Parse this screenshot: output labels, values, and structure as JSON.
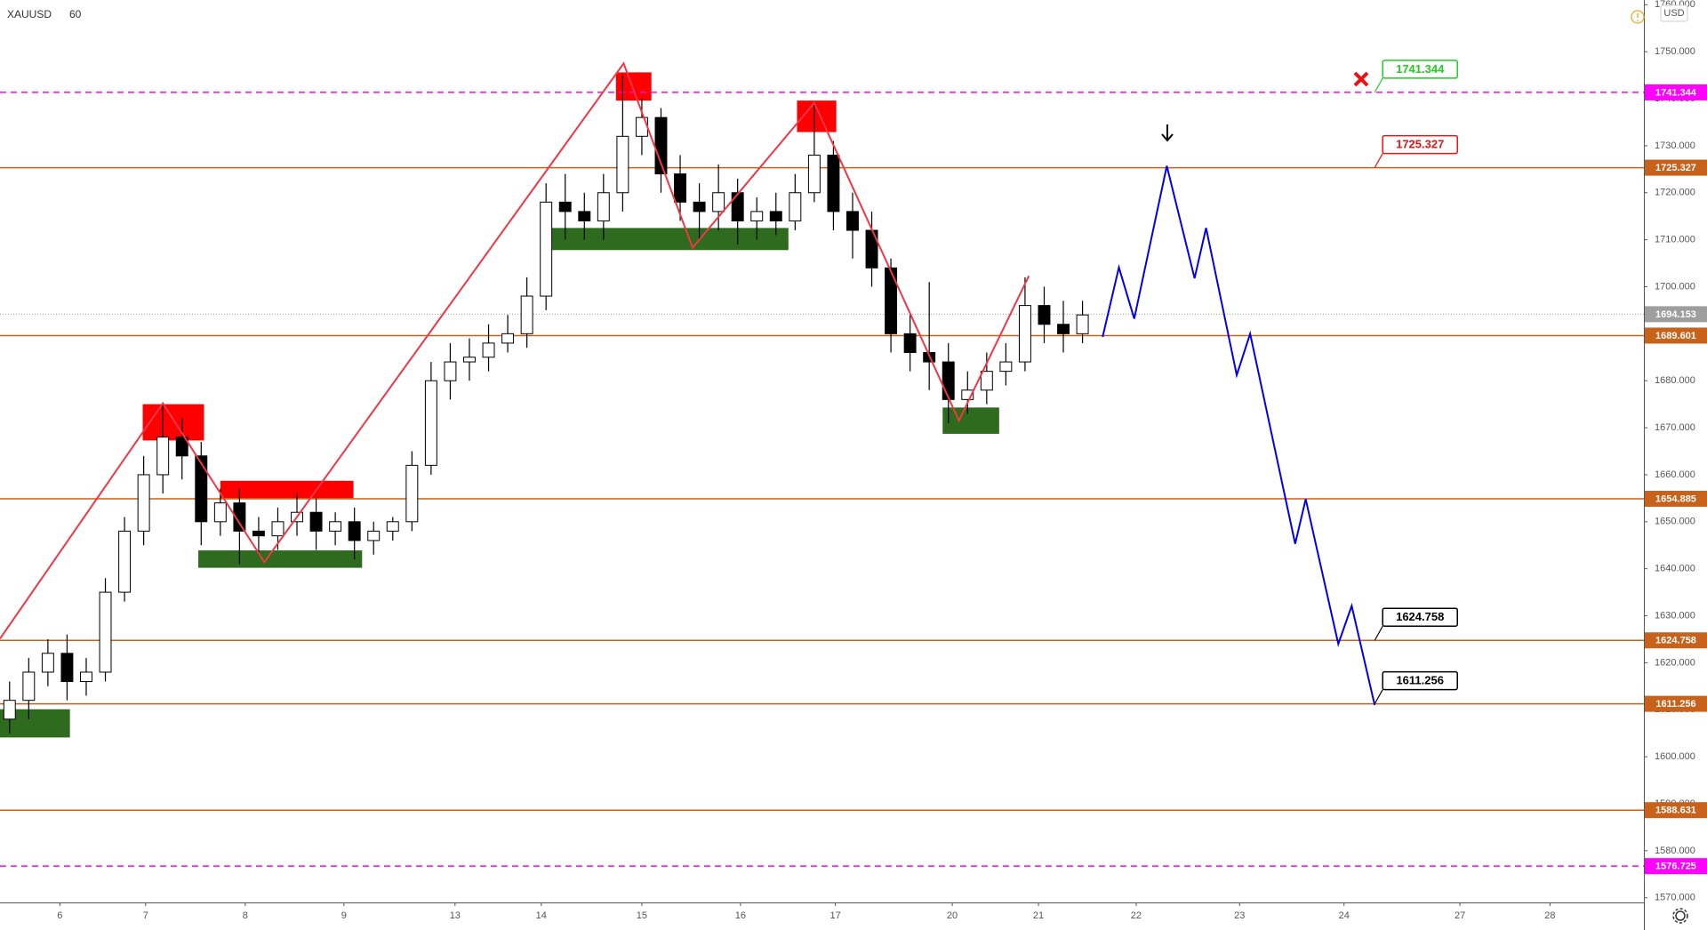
{
  "chart_data": {
    "type": "candlestick",
    "symbol": "XAUUSD",
    "interval": 60,
    "currency": "USD",
    "up_color": "#ffffff",
    "down_color": "#000000",
    "x": [
      0.1,
      0.3,
      0.5,
      0.7,
      0.9,
      1.1,
      1.3,
      1.5,
      1.7,
      1.9,
      2.1,
      2.3,
      2.5,
      2.7,
      2.9,
      3.1,
      3.3,
      3.5,
      3.7,
      3.9,
      4.1,
      4.3,
      4.5,
      4.7,
      4.9,
      5.1,
      5.3,
      5.5,
      5.7,
      5.9,
      6.1,
      6.3,
      6.5,
      6.7,
      6.9,
      7.1,
      7.3,
      7.5,
      7.7,
      7.9,
      8.1,
      8.3,
      8.5,
      8.7,
      8.9,
      9.1,
      9.3,
      9.5,
      9.7,
      9.9,
      10.1,
      10.3,
      10.5,
      10.7,
      10.9,
      11.1,
      11.3
    ],
    "open": [
      1608,
      1612,
      1618,
      1622,
      1616,
      1618,
      1635,
      1648,
      1660,
      1668,
      1664,
      1650,
      1654,
      1648,
      1647,
      1650,
      1652,
      1648,
      1650,
      1646,
      1648,
      1650,
      1662,
      1680,
      1684,
      1685,
      1688,
      1690,
      1698,
      1718,
      1716,
      1714,
      1720,
      1732,
      1736,
      1724,
      1718,
      1716,
      1720,
      1714,
      1716,
      1714,
      1720,
      1728,
      1716,
      1712,
      1704,
      1690,
      1686,
      1684,
      1676,
      1678,
      1682,
      1684,
      1696,
      1692,
      1690
    ],
    "high": [
      1616,
      1621,
      1625,
      1626,
      1621,
      1638,
      1651,
      1664,
      1675,
      1672,
      1667,
      1657,
      1657,
      1651,
      1653,
      1656,
      1655,
      1652,
      1653,
      1650,
      1651,
      1665,
      1684,
      1688,
      1689,
      1692,
      1694,
      1702,
      1722,
      1724,
      1720,
      1724,
      1745,
      1740,
      1738,
      1728,
      1722,
      1726,
      1723,
      1719,
      1720,
      1724,
      1739,
      1731,
      1720,
      1716,
      1706,
      1694,
      1701,
      1688,
      1682,
      1686,
      1688,
      1702,
      1700,
      1697,
      1697
    ],
    "low": [
      1605,
      1608,
      1615,
      1612,
      1613,
      1616,
      1633,
      1645,
      1656,
      1659,
      1645,
      1647,
      1641,
      1643,
      1644,
      1647,
      1644,
      1645,
      1642,
      1643,
      1646,
      1648,
      1660,
      1676,
      1680,
      1682,
      1686,
      1687,
      1695,
      1710,
      1710,
      1710,
      1716,
      1728,
      1720,
      1714,
      1710,
      1712,
      1709,
      1710,
      1711,
      1712,
      1718,
      1712,
      1706,
      1700,
      1686,
      1682,
      1678,
      1671,
      1673,
      1675,
      1679,
      1682,
      1688,
      1686,
      1688
    ],
    "close": [
      1612,
      1618,
      1622,
      1616,
      1618,
      1635,
      1648,
      1660,
      1668,
      1664,
      1650,
      1654,
      1648,
      1647,
      1650,
      1652,
      1648,
      1650,
      1646,
      1648,
      1650,
      1662,
      1680,
      1684,
      1685,
      1688,
      1690,
      1698,
      1718,
      1716,
      1714,
      1720,
      1732,
      1736,
      1724,
      1718,
      1716,
      1720,
      1714,
      1716,
      1714,
      1720,
      1728,
      1716,
      1712,
      1704,
      1690,
      1686,
      1684,
      1676,
      1678,
      1682,
      1684,
      1696,
      1692,
      1690,
      1694
    ],
    "xlim": [
      0,
      17.16
    ],
    "ylim": [
      1569,
      1761
    ],
    "xticks": [
      {
        "value": 0.625,
        "label": "6"
      },
      {
        "value": 1.52,
        "label": "7"
      },
      {
        "value": 2.56,
        "label": "8"
      },
      {
        "value": 3.59,
        "label": "9"
      },
      {
        "value": 4.75,
        "label": "13"
      },
      {
        "value": 5.65,
        "label": "14"
      },
      {
        "value": 6.7,
        "label": "15"
      },
      {
        "value": 7.73,
        "label": "16"
      },
      {
        "value": 8.72,
        "label": "17"
      },
      {
        "value": 9.94,
        "label": "20"
      },
      {
        "value": 10.84,
        "label": "21"
      },
      {
        "value": 11.86,
        "label": "22"
      },
      {
        "value": 12.94,
        "label": "23"
      },
      {
        "value": 14.03,
        "label": "24"
      },
      {
        "value": 15.24,
        "label": "27"
      },
      {
        "value": 16.18,
        "label": "28"
      }
    ],
    "yticks": [
      {
        "value": 1570,
        "label": "1570.000"
      },
      {
        "value": 1580,
        "label": "1580.000"
      },
      {
        "value": 1590,
        "label": "1590.000"
      },
      {
        "value": 1600,
        "label": "1600.000"
      },
      {
        "value": 1610,
        "label": "1610.000"
      },
      {
        "value": 1620,
        "label": "1620.000"
      },
      {
        "value": 1630,
        "label": "1630.000"
      },
      {
        "value": 1640,
        "label": "1640.000"
      },
      {
        "value": 1650,
        "label": "1650.000"
      },
      {
        "value": 1660,
        "label": "1660.000"
      },
      {
        "value": 1670,
        "label": "1670.000"
      },
      {
        "value": 1680,
        "label": "1680.000"
      },
      {
        "value": 1690,
        "label": "1690.000"
      },
      {
        "value": 1700,
        "label": "1700.000"
      },
      {
        "value": 1710,
        "label": "1710.000"
      },
      {
        "value": 1720,
        "label": "1720.000"
      },
      {
        "value": 1730,
        "label": "1730.000"
      },
      {
        "value": 1740,
        "label": "1740.000"
      },
      {
        "value": 1750,
        "label": "1750.000"
      },
      {
        "value": 1760,
        "label": "1760.000"
      }
    ],
    "levels": [
      {
        "value": 1741.344,
        "color": "#ff00ff",
        "style": "dashed"
      },
      {
        "value": 1725.327,
        "color": "#c8621a",
        "style": "solid"
      },
      {
        "value": 1689.601,
        "color": "#c8621a",
        "style": "solid"
      },
      {
        "value": 1654.885,
        "color": "#c8621a",
        "style": "solid"
      },
      {
        "value": 1624.758,
        "color": "#c8621a",
        "style": "solid"
      },
      {
        "value": 1611.256,
        "color": "#c8621a",
        "style": "solid"
      },
      {
        "value": 1588.631,
        "color": "#c8621a",
        "style": "solid"
      },
      {
        "value": 1576.725,
        "color": "#ff00ff",
        "style": "dashed"
      }
    ],
    "current_price": {
      "value": 1694.153,
      "color": "#9e9e9e"
    },
    "zones": [
      {
        "color": "#ff0000",
        "x": [
          1.49,
          2.13
        ],
        "y": [
          1667.3,
          1675.0
        ]
      },
      {
        "color": "#ff0000",
        "x": [
          2.3,
          3.69
        ],
        "y": [
          1655.0,
          1658.7
        ]
      },
      {
        "color": "#ff0000",
        "x": [
          6.43,
          6.8
        ],
        "y": [
          1739.6,
          1745.6
        ]
      },
      {
        "color": "#ff0000",
        "x": [
          8.32,
          8.73
        ],
        "y": [
          1732.9,
          1739.6
        ]
      },
      {
        "color": "#2e6b1e",
        "x": [
          0,
          0.73
        ],
        "y": [
          1604.1,
          1610.1
        ]
      },
      {
        "color": "#2e6b1e",
        "x": [
          2.07,
          3.78
        ],
        "y": [
          1640.2,
          1643.9
        ]
      },
      {
        "color": "#2e6b1e",
        "x": [
          5.76,
          8.23
        ],
        "y": [
          1707.8,
          1712.5
        ]
      },
      {
        "color": "#2e6b1e",
        "x": [
          9.84,
          10.43
        ],
        "y": [
          1668.7,
          1674.3
        ]
      }
    ],
    "zigzag": {
      "color": "#f23645",
      "x": [
        0,
        1.7,
        2.76,
        6.51,
        7.23,
        8.5,
        10.01,
        10.74
      ],
      "values": [
        1625.1,
        1675.2,
        1641.4,
        1747.5,
        1708.3,
        1739.1,
        1671.5,
        1702.3
      ]
    },
    "projection": {
      "color": "#0000ee",
      "x": [
        11.51,
        11.68,
        11.84,
        12.18,
        12.47,
        12.59,
        12.91,
        13.05,
        13.52,
        13.63,
        13.97,
        14.11,
        14.35
      ],
      "values": [
        1689.3,
        1704.1,
        1693.2,
        1725.7,
        1701.8,
        1712.5,
        1681.2,
        1690.0,
        1645.3,
        1654.8,
        1624.0,
        1632.1,
        1611.0
      ]
    },
    "callouts": [
      {
        "x": 14.35,
        "value": 1741.344,
        "color": "#22cc22"
      },
      {
        "x": 14.35,
        "value": 1725.327,
        "color": "#ee1111"
      },
      {
        "x": 14.35,
        "value": 1624.758,
        "color": "#000000"
      },
      {
        "x": 14.35,
        "value": 1611.256,
        "color": "#000000"
      }
    ]
  }
}
